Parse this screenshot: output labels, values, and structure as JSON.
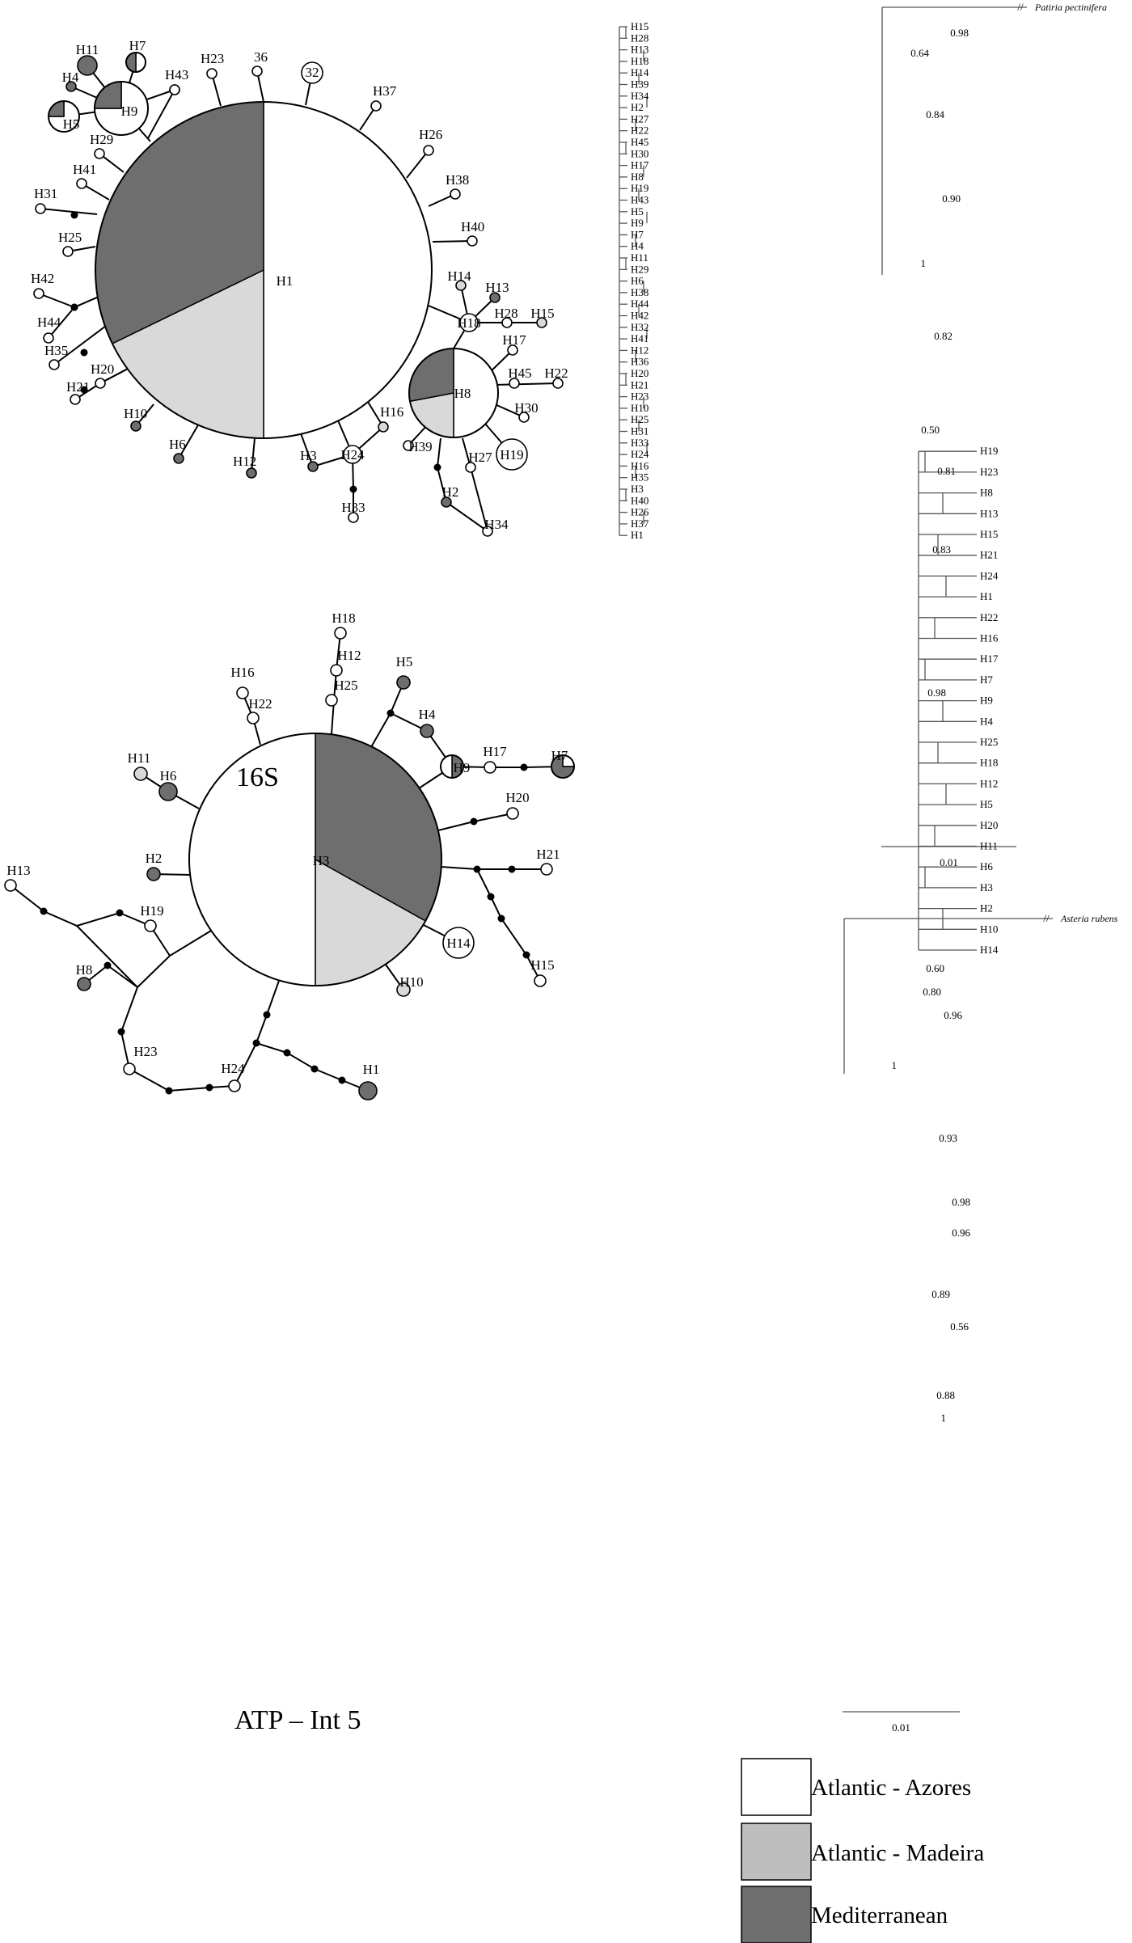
{
  "colors": {
    "azores": "#ffffff",
    "madeira": "#d9d9d9",
    "med": "#6e6e6e",
    "mut": "#000000"
  },
  "net16s": {
    "title": "16S",
    "hub_label": "H1",
    "nodes": [
      {
        "id": "H2",
        "label": "H2",
        "c": "med"
      },
      {
        "id": "H3",
        "label": "H3",
        "c": "med"
      },
      {
        "id": "H4",
        "label": "H4",
        "c": "med"
      },
      {
        "id": "H5",
        "label": "H5",
        "pie": [
          0.25,
          0.75
        ]
      },
      {
        "id": "H6",
        "label": "H6",
        "c": "med"
      },
      {
        "id": "H7",
        "label": "H7",
        "pie": [
          0.5,
          0.5
        ]
      },
      {
        "id": "H8",
        "label": "H8",
        "pie3": true
      },
      {
        "id": "H9",
        "label": "H9",
        "pie": [
          0.25,
          0.75
        ]
      },
      {
        "id": "H10",
        "label": "H10",
        "c": "med"
      },
      {
        "id": "H11",
        "label": "H11",
        "c": "med"
      },
      {
        "id": "H12",
        "label": "H12",
        "c": "med"
      },
      {
        "id": "H13",
        "label": "H13",
        "c": "med"
      },
      {
        "id": "H14",
        "label": "H14",
        "c": "madeira"
      },
      {
        "id": "H15",
        "label": "H15",
        "c": "madeira"
      },
      {
        "id": "H16",
        "label": "H16",
        "c": "madeira"
      },
      {
        "id": "H17",
        "label": "H17",
        "c": "azores"
      },
      {
        "id": "H18",
        "label": "H18",
        "c": "azores"
      },
      {
        "id": "H19",
        "label": "H19",
        "c": "azores"
      },
      {
        "id": "H20",
        "label": "H20",
        "c": "azores"
      },
      {
        "id": "H21",
        "label": "H21",
        "c": "azores"
      },
      {
        "id": "H22",
        "label": "H22",
        "c": "azores"
      },
      {
        "id": "H23",
        "label": "H23",
        "c": "azores"
      },
      {
        "id": "H24",
        "label": "H24",
        "c": "azores"
      },
      {
        "id": "H25",
        "label": "H25",
        "c": "azores"
      },
      {
        "id": "H26",
        "label": "H26",
        "c": "azores"
      },
      {
        "id": "H27",
        "label": "H27",
        "c": "azores"
      },
      {
        "id": "H28",
        "label": "H28",
        "c": "azores"
      },
      {
        "id": "H29",
        "label": "H29",
        "c": "azores"
      },
      {
        "id": "H30",
        "label": "H30",
        "c": "azores"
      },
      {
        "id": "H31",
        "label": "H31",
        "c": "azores"
      },
      {
        "id": "32",
        "label": "32",
        "c": "azores"
      },
      {
        "id": "H33",
        "label": "H33",
        "c": "azores"
      },
      {
        "id": "H34",
        "label": "H34",
        "c": "azores"
      },
      {
        "id": "H35",
        "label": "H35",
        "c": "azores"
      },
      {
        "id": "36",
        "label": "36",
        "c": "azores"
      },
      {
        "id": "H37",
        "label": "H37",
        "c": "azores"
      },
      {
        "id": "H38",
        "label": "H38",
        "c": "azores"
      },
      {
        "id": "H39",
        "label": "H39",
        "c": "azores"
      },
      {
        "id": "H40",
        "label": "H40",
        "c": "azores"
      },
      {
        "id": "H41",
        "label": "H41",
        "c": "azores"
      },
      {
        "id": "H42",
        "label": "H42",
        "c": "azores"
      },
      {
        "id": "H43",
        "label": "H43",
        "c": "azores"
      },
      {
        "id": "H44",
        "label": "H44",
        "c": "azores"
      },
      {
        "id": "H45",
        "label": "H45",
        "c": "azores"
      }
    ]
  },
  "netatp": {
    "title": "ATP – Int 5",
    "hub_label": "H3",
    "nodes": [
      {
        "id": "H1",
        "label": "H1",
        "c": "med"
      },
      {
        "id": "H2",
        "label": "H2",
        "c": "med"
      },
      {
        "id": "H4",
        "label": "H4",
        "c": "med"
      },
      {
        "id": "H5",
        "label": "H5",
        "c": "med"
      },
      {
        "id": "H6",
        "label": "H6",
        "c": "med"
      },
      {
        "id": "H7",
        "label": "H7",
        "pie": [
          0.75,
          0.25
        ]
      },
      {
        "id": "H8",
        "label": "H8",
        "c": "med"
      },
      {
        "id": "H9",
        "label": "H9",
        "pie": [
          0.5,
          0.5
        ]
      },
      {
        "id": "H10",
        "label": "H10",
        "c": "madeira"
      },
      {
        "id": "H11",
        "label": "H11",
        "c": "madeira"
      },
      {
        "id": "H12",
        "label": "H12",
        "c": "azores"
      },
      {
        "id": "H13",
        "label": "H13",
        "c": "azores"
      },
      {
        "id": "H14",
        "label": "H14",
        "c": "azores"
      },
      {
        "id": "H15",
        "label": "H15",
        "c": "azores"
      },
      {
        "id": "H16",
        "label": "H16",
        "c": "azores"
      },
      {
        "id": "H17",
        "label": "H17",
        "c": "azores"
      },
      {
        "id": "H18",
        "label": "H18",
        "c": "azores"
      },
      {
        "id": "H19",
        "label": "H19",
        "c": "azores"
      },
      {
        "id": "H20",
        "label": "H20",
        "c": "azores"
      },
      {
        "id": "H21",
        "label": "H21",
        "c": "azores"
      },
      {
        "id": "H22",
        "label": "H22",
        "c": "azores"
      },
      {
        "id": "H23",
        "label": "H23",
        "c": "azores"
      },
      {
        "id": "H24",
        "label": "H24",
        "c": "azores"
      },
      {
        "id": "H25",
        "label": "H25",
        "c": "azores"
      }
    ]
  },
  "tree16s": {
    "outgroup": "Patiria pectinifera",
    "tips": [
      "H15",
      "H28",
      "H13",
      "H18",
      "H14",
      "H39",
      "H34",
      "H2",
      "H27",
      "H22",
      "H45",
      "H30",
      "H17",
      "H8",
      "H19",
      "H43",
      "H5",
      "H9",
      "H7",
      "H4",
      "H11",
      "H29",
      "H6",
      "H38",
      "H44",
      "H42",
      "H32",
      "H41",
      "H12",
      "H36",
      "H20",
      "H21",
      "H23",
      "H10",
      "H25",
      "H31",
      "H33",
      "H24",
      "H16",
      "H35",
      "H3",
      "H40",
      "H26",
      "H37",
      "H1"
    ],
    "supports": [
      "0.98",
      "0.64",
      "0.84",
      "0.90",
      "1",
      "0.82",
      "0.50",
      "0.81",
      "0.83",
      "0.98"
    ],
    "scale": "0.01"
  },
  "treeatp": {
    "outgroup": "Asteria rubens",
    "tips": [
      "H19",
      "H23",
      "H8",
      "H13",
      "H15",
      "H21",
      "H24",
      "H1",
      "H22",
      "H16",
      "H17",
      "H7",
      "H9",
      "H4",
      "H25",
      "H18",
      "H12",
      "H5",
      "H20",
      "H11",
      "H6",
      "H3",
      "H2",
      "H10",
      "H14"
    ],
    "supports": [
      "0.60",
      "0.80",
      "0.96",
      "1",
      "0.93",
      "0.98",
      "0.96",
      "0.89",
      "0.56",
      "0.88",
      "1"
    ],
    "scale": "0.01"
  },
  "legend": {
    "items": [
      "Atlantic - Azores",
      "Atlantic - Madeira",
      "Mediterranean"
    ]
  }
}
